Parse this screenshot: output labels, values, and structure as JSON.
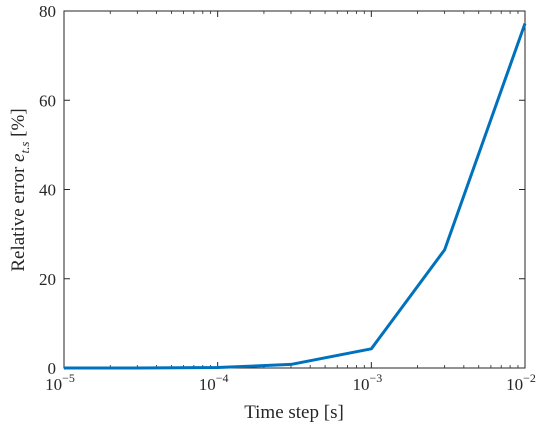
{
  "chart_data": {
    "type": "line",
    "xscale": "log",
    "xlim": [
      1e-05,
      0.01
    ],
    "ylim": [
      0,
      80
    ],
    "grid": false,
    "xlabel": "Time step [s]",
    "ylabel": {
      "prefix": "Relative error ",
      "symbol": "e",
      "subscript": "t.s",
      "suffix": " [%]"
    },
    "x_ticks": [
      {
        "value": 1e-05,
        "base": "10",
        "exp": "−5"
      },
      {
        "value": 0.0001,
        "base": "10",
        "exp": "−4"
      },
      {
        "value": 0.001,
        "base": "10",
        "exp": "−3"
      },
      {
        "value": 0.01,
        "base": "10",
        "exp": "−2"
      }
    ],
    "y_ticks": [
      0,
      20,
      40,
      60,
      80
    ],
    "series": [
      {
        "color": "#0072BD",
        "x": [
          1e-05,
          3e-05,
          0.0001,
          0.0003,
          0.001,
          0.003,
          0.01
        ],
        "y": [
          0,
          0,
          0.1,
          0.8,
          4.3,
          26.5,
          77.2
        ]
      }
    ]
  }
}
